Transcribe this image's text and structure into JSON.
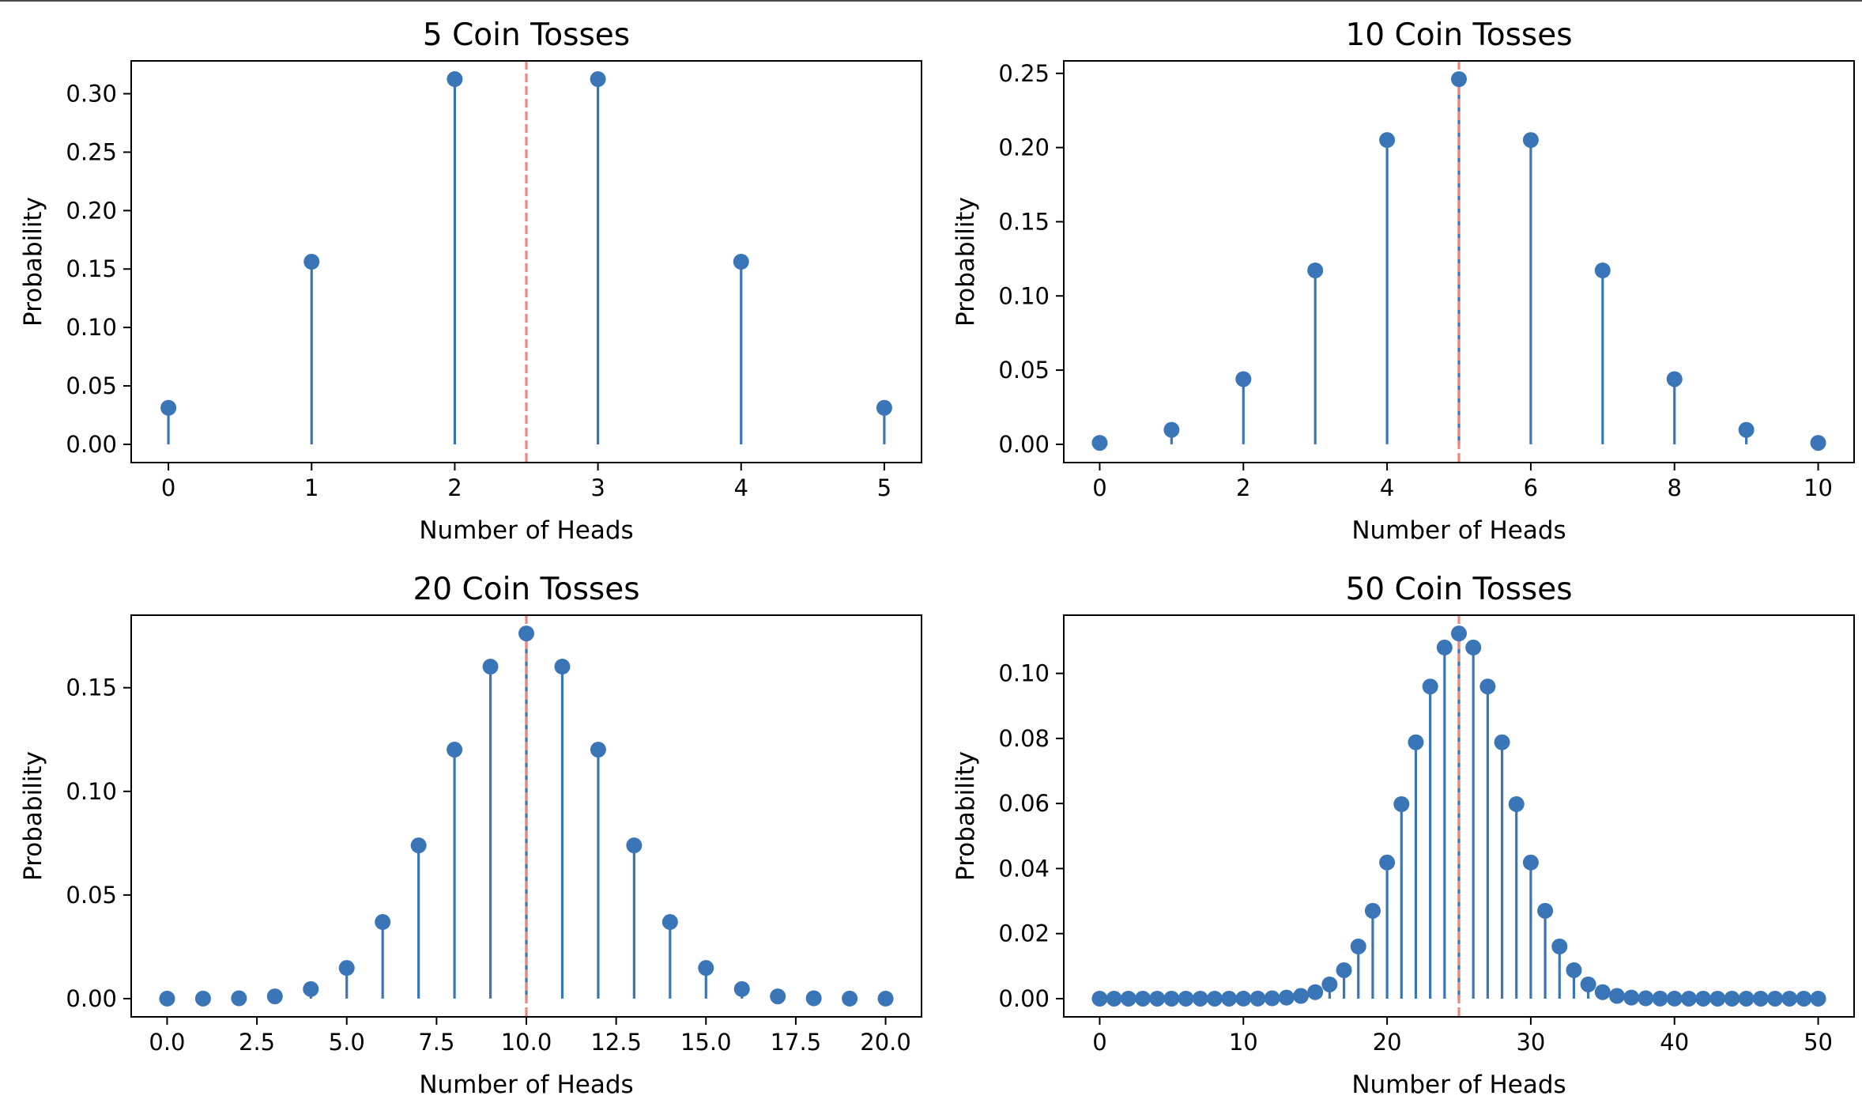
{
  "figure": {
    "background": "#ffffff"
  },
  "style": {
    "stem_color": "#3a76b7",
    "mean_line_color": "#e9887f"
  },
  "chart_data": [
    {
      "type": "stem",
      "title": "5 Coin Tosses",
      "xlabel": "Number of Heads",
      "ylabel": "Probability",
      "xlim": [
        -0.26,
        5.26
      ],
      "ylim": [
        -0.0156,
        0.3281
      ],
      "xticks": [
        0,
        1,
        2,
        3,
        4,
        5
      ],
      "xtick_labels": [
        "0",
        "1",
        "2",
        "3",
        "4",
        "5"
      ],
      "yticks": [
        0.0,
        0.05,
        0.1,
        0.15,
        0.2,
        0.25,
        0.3
      ],
      "ytick_labels": [
        "0.00",
        "0.05",
        "0.10",
        "0.15",
        "0.20",
        "0.25",
        "0.30"
      ],
      "x": [
        0,
        1,
        2,
        3,
        4,
        5
      ],
      "y": [
        0.03125,
        0.15625,
        0.3125,
        0.3125,
        0.15625,
        0.03125
      ],
      "mean_line": 2.5,
      "grid": false
    },
    {
      "type": "stem",
      "title": "10 Coin Tosses",
      "xlabel": "Number of Heads",
      "ylabel": "Probability",
      "xlim": [
        -0.5,
        10.5
      ],
      "ylim": [
        -0.0123,
        0.2584
      ],
      "xticks": [
        0,
        2,
        4,
        6,
        8,
        10
      ],
      "xtick_labels": [
        "0",
        "2",
        "4",
        "6",
        "8",
        "10"
      ],
      "yticks": [
        0.0,
        0.05,
        0.1,
        0.15,
        0.2,
        0.25
      ],
      "ytick_labels": [
        "0.00",
        "0.05",
        "0.10",
        "0.15",
        "0.20",
        "0.25"
      ],
      "x": [
        0,
        1,
        2,
        3,
        4,
        5,
        6,
        7,
        8,
        9,
        10
      ],
      "y": [
        0.000977,
        0.009766,
        0.043945,
        0.117188,
        0.205078,
        0.246094,
        0.205078,
        0.117188,
        0.043945,
        0.009766,
        0.000977
      ],
      "mean_line": 5,
      "grid": false
    },
    {
      "type": "stem",
      "title": "20 Coin Tosses",
      "xlabel": "Number of Heads",
      "ylabel": "Probability",
      "xlim": [
        -1.0,
        21.0
      ],
      "ylim": [
        -0.0088,
        0.185
      ],
      "xticks": [
        0,
        2.5,
        5,
        7.5,
        10,
        12.5,
        15,
        17.5,
        20
      ],
      "xtick_labels": [
        "0.0",
        "2.5",
        "5.0",
        "7.5",
        "10.0",
        "12.5",
        "15.0",
        "17.5",
        "20.0"
      ],
      "yticks": [
        0.0,
        0.05,
        0.1,
        0.15
      ],
      "ytick_labels": [
        "0.00",
        "0.05",
        "0.10",
        "0.15"
      ],
      "x": [
        0,
        1,
        2,
        3,
        4,
        5,
        6,
        7,
        8,
        9,
        10,
        11,
        12,
        13,
        14,
        15,
        16,
        17,
        18,
        19,
        20
      ],
      "y": [
        1e-06,
        1.9e-05,
        0.000181,
        0.001087,
        0.004621,
        0.014786,
        0.036964,
        0.073929,
        0.120134,
        0.160179,
        0.176197,
        0.160179,
        0.120134,
        0.073929,
        0.036964,
        0.014786,
        0.004621,
        0.001087,
        0.000181,
        1.9e-05,
        1e-06
      ],
      "mean_line": 10,
      "grid": false
    },
    {
      "type": "stem",
      "title": "50 Coin Tosses",
      "xlabel": "Number of Heads",
      "ylabel": "Probability",
      "xlim": [
        -2.5,
        52.5
      ],
      "ylim": [
        -0.0056,
        0.1179
      ],
      "xticks": [
        0,
        10,
        20,
        30,
        40,
        50
      ],
      "xtick_labels": [
        "0",
        "10",
        "20",
        "30",
        "40",
        "50"
      ],
      "yticks": [
        0.0,
        0.02,
        0.04,
        0.06,
        0.08,
        0.1
      ],
      "ytick_labels": [
        "0.00",
        "0.02",
        "0.04",
        "0.06",
        "0.08",
        "0.10"
      ],
      "x": [
        0,
        1,
        2,
        3,
        4,
        5,
        6,
        7,
        8,
        9,
        10,
        11,
        12,
        13,
        14,
        15,
        16,
        17,
        18,
        19,
        20,
        21,
        22,
        23,
        24,
        25,
        26,
        27,
        28,
        29,
        30,
        31,
        32,
        33,
        34,
        35,
        36,
        37,
        38,
        39,
        40,
        41,
        42,
        43,
        44,
        45,
        46,
        47,
        48,
        49,
        50
      ],
      "y": [
        0,
        0,
        0,
        0,
        0,
        0,
        0,
        0,
        0,
        0,
        9e-06,
        3.3e-05,
        0.000108,
        0.000315,
        0.000836,
        0.001999,
        0.004373,
        0.008746,
        0.016035,
        0.027006,
        0.041859,
        0.059799,
        0.078826,
        0.095962,
        0.107957,
        0.112275,
        0.107957,
        0.095962,
        0.078826,
        0.059799,
        0.041859,
        0.027006,
        0.016035,
        0.008746,
        0.004373,
        0.001999,
        0.000836,
        0.000315,
        0.000108,
        3.3e-05,
        9e-06,
        0,
        0,
        0,
        0,
        0,
        0,
        0,
        0,
        0,
        0
      ],
      "mean_line": 25,
      "grid": false
    }
  ]
}
